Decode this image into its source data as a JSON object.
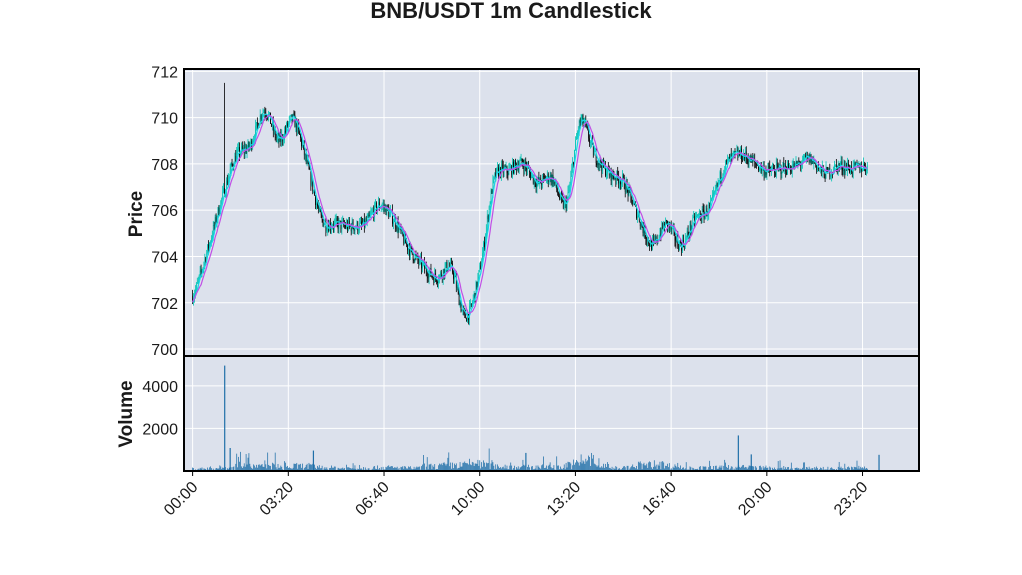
{
  "colors": {
    "panel_bg": "#dce1ec",
    "grid": "#ffffff",
    "candle_up": "#00c4b4",
    "candle_down": "#000000",
    "ma_fast": "#18d5e8",
    "ma_slow": "#c04fe6",
    "volume": "#1f6fa8",
    "frame": "#000000"
  },
  "chart_data": {
    "type": "candlestick",
    "title": "BNB/USDT 1m Candlestick",
    "price_panel": {
      "ylabel": "Price",
      "ylim": [
        699.7,
        712.1
      ],
      "yticks": [
        700,
        702,
        704,
        706,
        708,
        710,
        712
      ],
      "yticklabels": [
        "700",
        "702",
        "704",
        "706",
        "708",
        "710",
        "712"
      ]
    },
    "volume_panel": {
      "ylabel": "Volume",
      "ylim": [
        0,
        5400
      ],
      "yticks": [
        2000,
        4000
      ],
      "yticklabels": [
        "2000",
        "4000"
      ]
    },
    "x_axis": {
      "xlim": [
        -0.3,
        25.3
      ],
      "tick_hours": [
        0,
        3.333,
        6.667,
        10,
        13.333,
        16.667,
        20,
        23.333
      ],
      "ticklabels": [
        "00:00",
        "03:20",
        "06:40",
        "10:00",
        "13:20",
        "16:40",
        "20:00",
        "23:20"
      ],
      "grid": true
    },
    "moving_averages": [
      "fast",
      "slow"
    ],
    "price_path": {
      "interval_hours": 0.5,
      "close": [
        702.3,
        704.2,
        706.4,
        708.3,
        708.8,
        710.3,
        709.0,
        709.9,
        707.9,
        705.6,
        705.4,
        705.3,
        705.4,
        706.2,
        705.6,
        704.4,
        703.6,
        703.1,
        703.5,
        701.4,
        703.4,
        707.3,
        707.7,
        708.0,
        707.2,
        707.4,
        706.3,
        709.8,
        708.4,
        707.6,
        707.2,
        705.8,
        704.5,
        705.4,
        704.5,
        705.6,
        706.1,
        707.8,
        708.4,
        708.1,
        707.7,
        707.8,
        707.9,
        708.2,
        707.6,
        707.9,
        707.8,
        707.9
      ]
    },
    "volume_profile": {
      "interval_hours": 0.5,
      "values": [
        180,
        220,
        250,
        900,
        350,
        420,
        260,
        380,
        340,
        260,
        220,
        240,
        260,
        280,
        240,
        230,
        360,
        420,
        460,
        600,
        520,
        360,
        340,
        300,
        320,
        330,
        560,
        900,
        420,
        260,
        260,
        480,
        520,
        400,
        230,
        240,
        260,
        300,
        300,
        260,
        230,
        200,
        200,
        210,
        200,
        220,
        260,
        280
      ],
      "spikes": [
        [
          1.11,
          4950
        ],
        [
          1.3,
          1080
        ],
        [
          4.2,
          960
        ],
        [
          11.6,
          850
        ],
        [
          19.0,
          1670
        ],
        [
          19.45,
          780
        ],
        [
          23.9,
          760
        ]
      ]
    }
  }
}
